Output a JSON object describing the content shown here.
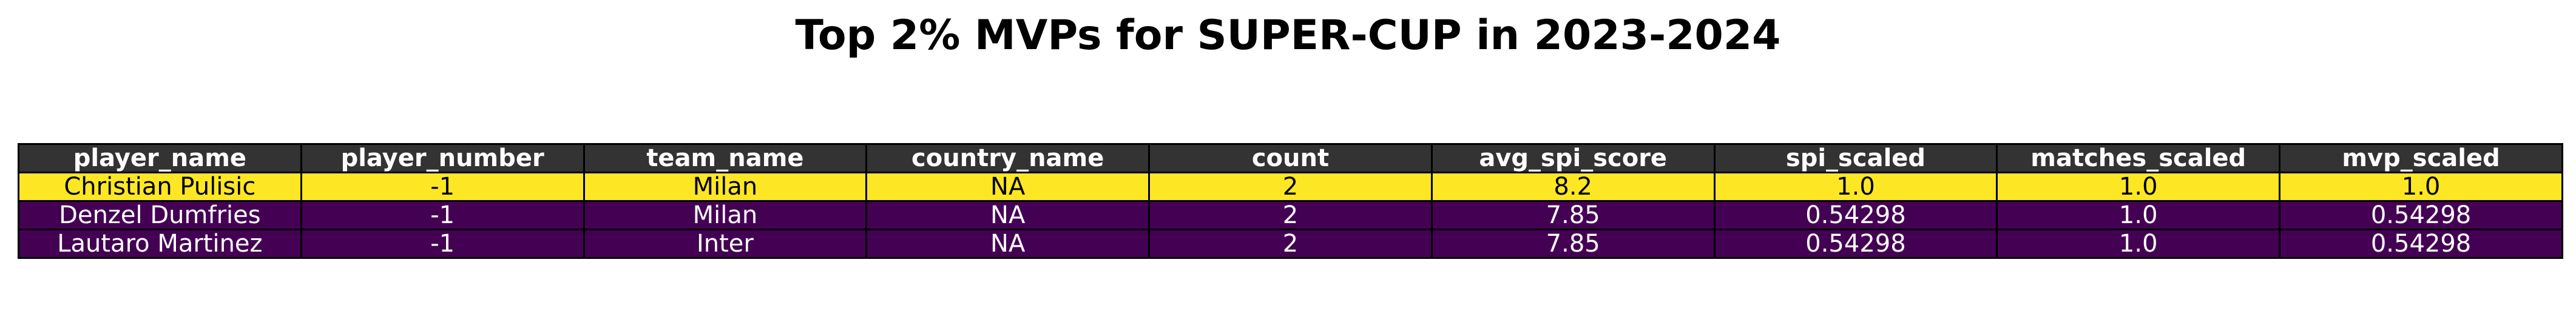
{
  "chart_data": {
    "type": "table",
    "title": "Top 2% MVPs for SUPER-CUP in 2023-2024",
    "columns": [
      "player_name",
      "player_number",
      "team_name",
      "country_name",
      "count",
      "avg_spi_score",
      "spi_scaled",
      "matches_scaled",
      "mvp_scaled"
    ],
    "rows": [
      [
        "Christian Pulisic",
        "-1",
        "Milan",
        "NA",
        "2",
        "8.2",
        "1.0",
        "1.0",
        "1.0"
      ],
      [
        "Denzel Dumfries",
        "-1",
        "Milan",
        "NA",
        "2",
        "7.85",
        "0.54298",
        "1.0",
        "0.54298"
      ],
      [
        "Lautaro Martinez",
        "-1",
        "Inter",
        "NA",
        "2",
        "7.85",
        "0.54298",
        "1.0",
        "0.54298"
      ]
    ],
    "colors": {
      "header_bg": "#333333",
      "header_text": "#ffffff",
      "top_row_bg": "#fde725",
      "top_row_text": "#000000",
      "other_row_bg": "#440154",
      "other_row_text": "#ffffff"
    }
  }
}
